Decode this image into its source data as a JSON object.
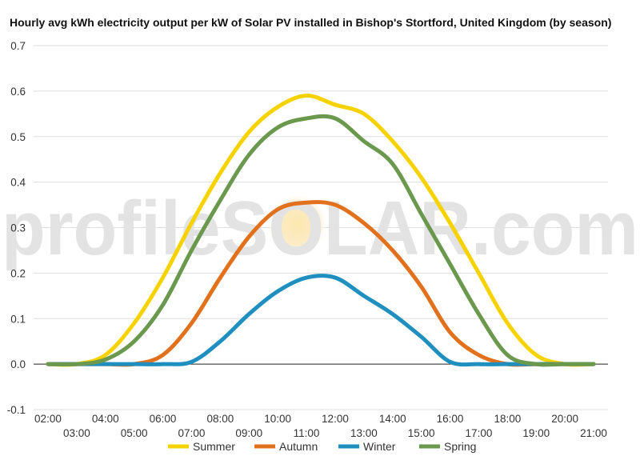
{
  "chart_data": {
    "type": "line",
    "title": "Hourly avg kWh electricity output per kW of Solar PV installed in Bishop's Stortford, United Kingdom (by season)",
    "xlabel": "",
    "ylabel": "",
    "ylim": [
      -0.1,
      0.7
    ],
    "yticks": [
      -0.1,
      0.0,
      0.1,
      0.2,
      0.3,
      0.4,
      0.5,
      0.6,
      0.7
    ],
    "ytick_labels": [
      "-0.1",
      "0.0",
      "0.1",
      "0.2",
      "0.3",
      "0.4",
      "0.5",
      "0.6",
      "0.7"
    ],
    "x_hours": [
      2,
      3,
      4,
      5,
      6,
      7,
      8,
      9,
      10,
      11,
      12,
      13,
      14,
      15,
      16,
      17,
      18,
      19,
      20,
      21
    ],
    "categories": [
      "02:00",
      "03:00",
      "04:00",
      "05:00",
      "06:00",
      "07:00",
      "08:00",
      "09:00",
      "10:00",
      "11:00",
      "12:00",
      "13:00",
      "14:00",
      "15:00",
      "16:00",
      "17:00",
      "18:00",
      "19:00",
      "20:00",
      "21:00"
    ],
    "series": [
      {
        "name": "Summer",
        "color": "#f6d300",
        "values": [
          0.0,
          0.0,
          0.02,
          0.09,
          0.19,
          0.31,
          0.42,
          0.51,
          0.565,
          0.59,
          0.57,
          0.55,
          0.49,
          0.41,
          0.31,
          0.2,
          0.09,
          0.02,
          0.0,
          0.0
        ]
      },
      {
        "name": "Autumn",
        "color": "#e2711d",
        "values": [
          0.0,
          0.0,
          0.0,
          0.0,
          0.02,
          0.09,
          0.19,
          0.28,
          0.34,
          0.355,
          0.35,
          0.31,
          0.25,
          0.17,
          0.07,
          0.02,
          0.0,
          0.0,
          0.0,
          0.0
        ]
      },
      {
        "name": "Winter",
        "color": "#1f8fc0",
        "values": [
          0.0,
          0.0,
          0.0,
          0.0,
          0.0,
          0.005,
          0.05,
          0.11,
          0.16,
          0.19,
          0.19,
          0.15,
          0.11,
          0.06,
          0.005,
          0.0,
          0.0,
          0.0,
          0.0,
          0.0
        ]
      },
      {
        "name": "Spring",
        "color": "#6a994e",
        "values": [
          0.0,
          0.0,
          0.01,
          0.05,
          0.13,
          0.25,
          0.36,
          0.46,
          0.52,
          0.54,
          0.54,
          0.49,
          0.44,
          0.33,
          0.22,
          0.11,
          0.02,
          0.0,
          0.0,
          0.0
        ]
      }
    ],
    "legend_position": "bottom-center",
    "grid": true
  },
  "watermark": {
    "text": "profileSOLAR.com"
  }
}
